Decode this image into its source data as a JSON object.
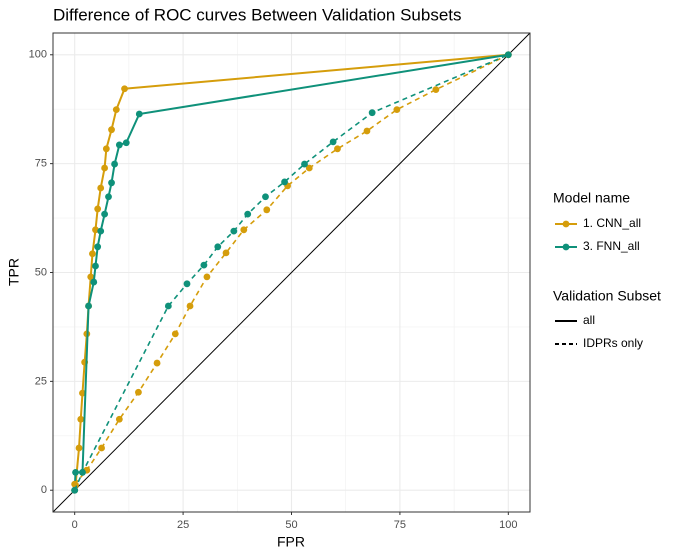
{
  "chart_data": {
    "type": "line",
    "title": "Difference of ROC curves Between Validation Subsets",
    "x_label": "FPR",
    "y_label": "TPR",
    "xlim": [
      -5,
      105
    ],
    "ylim": [
      -5,
      105
    ],
    "xticks": [
      0,
      25,
      50,
      75,
      100
    ],
    "yticks": [
      0,
      25,
      50,
      75,
      100
    ],
    "grid": true,
    "color_legend_title": "Model name",
    "linetype_legend_title": "Validation Subset",
    "series": [
      {
        "model": "1. CNN_all",
        "subset": "all",
        "color": "#D59D0B",
        "dashed": false,
        "x": [
          0,
          0.2,
          1,
          1.4,
          1.8,
          2.3,
          2.8,
          3.2,
          3.7,
          4.1,
          4.8,
          5.3,
          6,
          6.9,
          7.3,
          8.5,
          9.6,
          11.5,
          100
        ],
        "values": [
          0,
          1.2,
          9.7,
          16.3,
          22.3,
          29.4,
          35.9,
          42.3,
          49,
          54.3,
          59.8,
          64.6,
          69.4,
          74,
          78.4,
          82.8,
          87.4,
          92.2,
          100
        ]
      },
      {
        "model": "3. FNN_all",
        "subset": "all",
        "color": "#0F917A",
        "dashed": false,
        "x": [
          0,
          0.2,
          1.8,
          3.2,
          4.4,
          4.8,
          5.3,
          6,
          6.9,
          7.8,
          8.5,
          9.2,
          10.3,
          11.9,
          14.9,
          100
        ],
        "values": [
          0,
          4.1,
          4.1,
          42.3,
          47.8,
          51.5,
          55.9,
          59.5,
          63.4,
          67.4,
          70.6,
          74.9,
          79.3,
          79.8,
          86.4,
          100
        ]
      },
      {
        "model": "1. CNN_all",
        "subset": "IDPRs only",
        "color": "#D59D0B",
        "dashed": true,
        "x": [
          0,
          2.8,
          6.2,
          10.3,
          14.7,
          19,
          23.2,
          26.6,
          30.5,
          34.9,
          39,
          44.3,
          49.1,
          54.1,
          60.6,
          67.4,
          74.3,
          83.3,
          100
        ],
        "values": [
          1.4,
          4.6,
          9.7,
          16.3,
          22.5,
          29.2,
          35.9,
          42.3,
          49,
          54.5,
          59.8,
          64.4,
          69.9,
          74,
          78.4,
          82.5,
          87.4,
          92,
          100
        ]
      },
      {
        "model": "3. FNN_all",
        "subset": "IDPRs only",
        "color": "#0F917A",
        "dashed": true,
        "x": [
          0,
          1.8,
          21.6,
          25.9,
          29.8,
          33,
          36.7,
          39.9,
          44,
          48.4,
          53,
          59.6,
          68.6,
          100
        ],
        "values": [
          0,
          4.1,
          42.3,
          47.4,
          51.7,
          55.9,
          59.5,
          63.4,
          67.4,
          70.8,
          74.9,
          80,
          86.7,
          100
        ]
      }
    ]
  }
}
